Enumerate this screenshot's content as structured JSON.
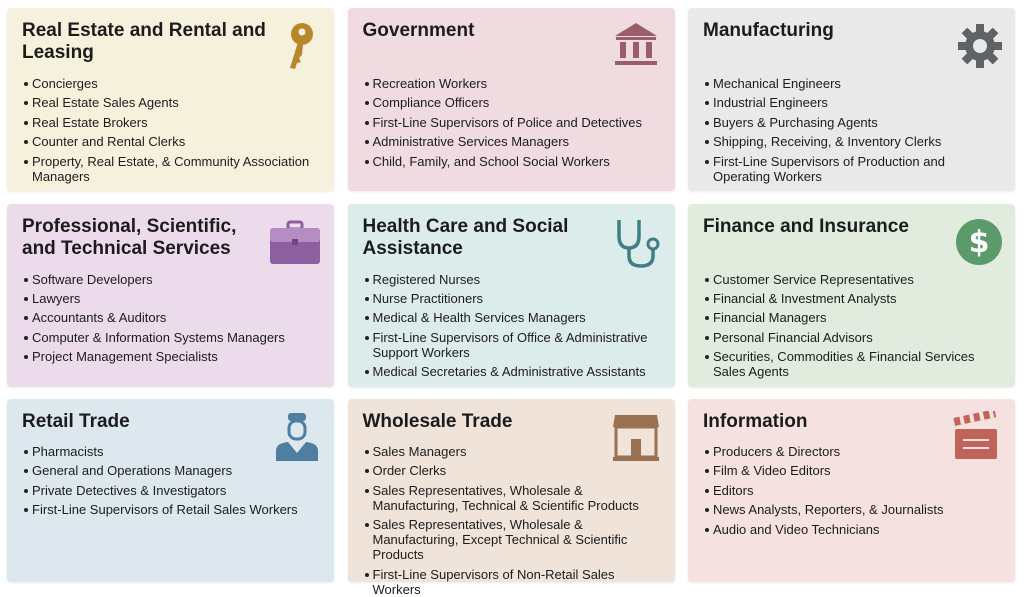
{
  "cards": [
    {
      "title": "Real Estate and Rental and Leasing",
      "icon": "key-icon",
      "bg": "#f6f1dc",
      "icon_color": "#b8862b",
      "items": [
        "Concierges",
        "Real Estate Sales Agents",
        "Real Estate Brokers",
        "Counter and Rental Clerks",
        "Property, Real Estate, & Community Association Managers"
      ]
    },
    {
      "title": "Government",
      "icon": "government-building-icon",
      "bg": "#f0dbe0",
      "icon_color": "#9a5d6a",
      "items": [
        "Recreation Workers",
        "Compliance Officers",
        "First-Line Supervisors of Police and Detectives",
        "Administrative Services Managers",
        "Child, Family, and School Social Workers"
      ]
    },
    {
      "title": "Manufacturing",
      "icon": "gear-icon",
      "bg": "#e9e9ea",
      "icon_color": "#5f6366",
      "items": [
        "Mechanical Engineers",
        "Industrial Engineers",
        "Buyers & Purchasing Agents",
        "Shipping, Receiving, & Inventory Clerks",
        "First-Line Supervisors of Production and Operating Workers"
      ]
    },
    {
      "title": "Professional, Scientific, and Technical Services",
      "icon": "briefcase-icon",
      "bg": "#ecdbeb",
      "icon_color": "#8e5fa0",
      "items": [
        "Software Developers",
        "Lawyers",
        "Accountants & Auditors",
        "Computer & Information Systems Managers",
        "Project Management Specialists"
      ]
    },
    {
      "title": "Health Care and Social Assistance",
      "icon": "stethoscope-icon",
      "bg": "#dcecea",
      "icon_color": "#3f7f86",
      "items": [
        "Registered Nurses",
        "Nurse Practitioners",
        "Medical & Health Services Managers",
        "First-Line Supervisors of Office & Administrative Support Workers",
        "Medical Secretaries & Administrative Assistants"
      ]
    },
    {
      "title": "Finance and Insurance",
      "icon": "dollar-circle-icon",
      "bg": "#e1ecdf",
      "icon_color": "#5b9a6b",
      "items": [
        "Customer Service Representatives",
        "Financial & Investment Analysts",
        "Financial Managers",
        "Personal Financial Advisors",
        "Securities, Commodities & Financial Services Sales Agents"
      ]
    },
    {
      "title": "Retail Trade",
      "icon": "worker-icon",
      "bg": "#dce7ee",
      "icon_color": "#4e7fa0",
      "items": [
        "Pharmacists",
        "General and Operations Managers",
        "Private Detectives & Investigators",
        "First-Line Supervisors of Retail Sales Workers"
      ]
    },
    {
      "title": "Wholesale Trade",
      "icon": "storefront-icon",
      "bg": "#efe3da",
      "icon_color": "#9b7251",
      "items": [
        "Sales Managers",
        "Order Clerks",
        "Sales Representatives, Wholesale & Manufacturing, Technical & Scientific Products",
        "Sales Representatives, Wholesale & Manufacturing, Except Technical & Scientific Products",
        "First-Line Supervisors of Non-Retail Sales Workers"
      ]
    },
    {
      "title": "Information",
      "icon": "clapperboard-icon",
      "bg": "#f6e1e1",
      "icon_color": "#c0645a",
      "items": [
        "Producers & Directors",
        "Film & Video Editors",
        "Editors",
        "News Analysts, Reporters, & Journalists",
        "Audio and Video Technicians"
      ]
    }
  ]
}
